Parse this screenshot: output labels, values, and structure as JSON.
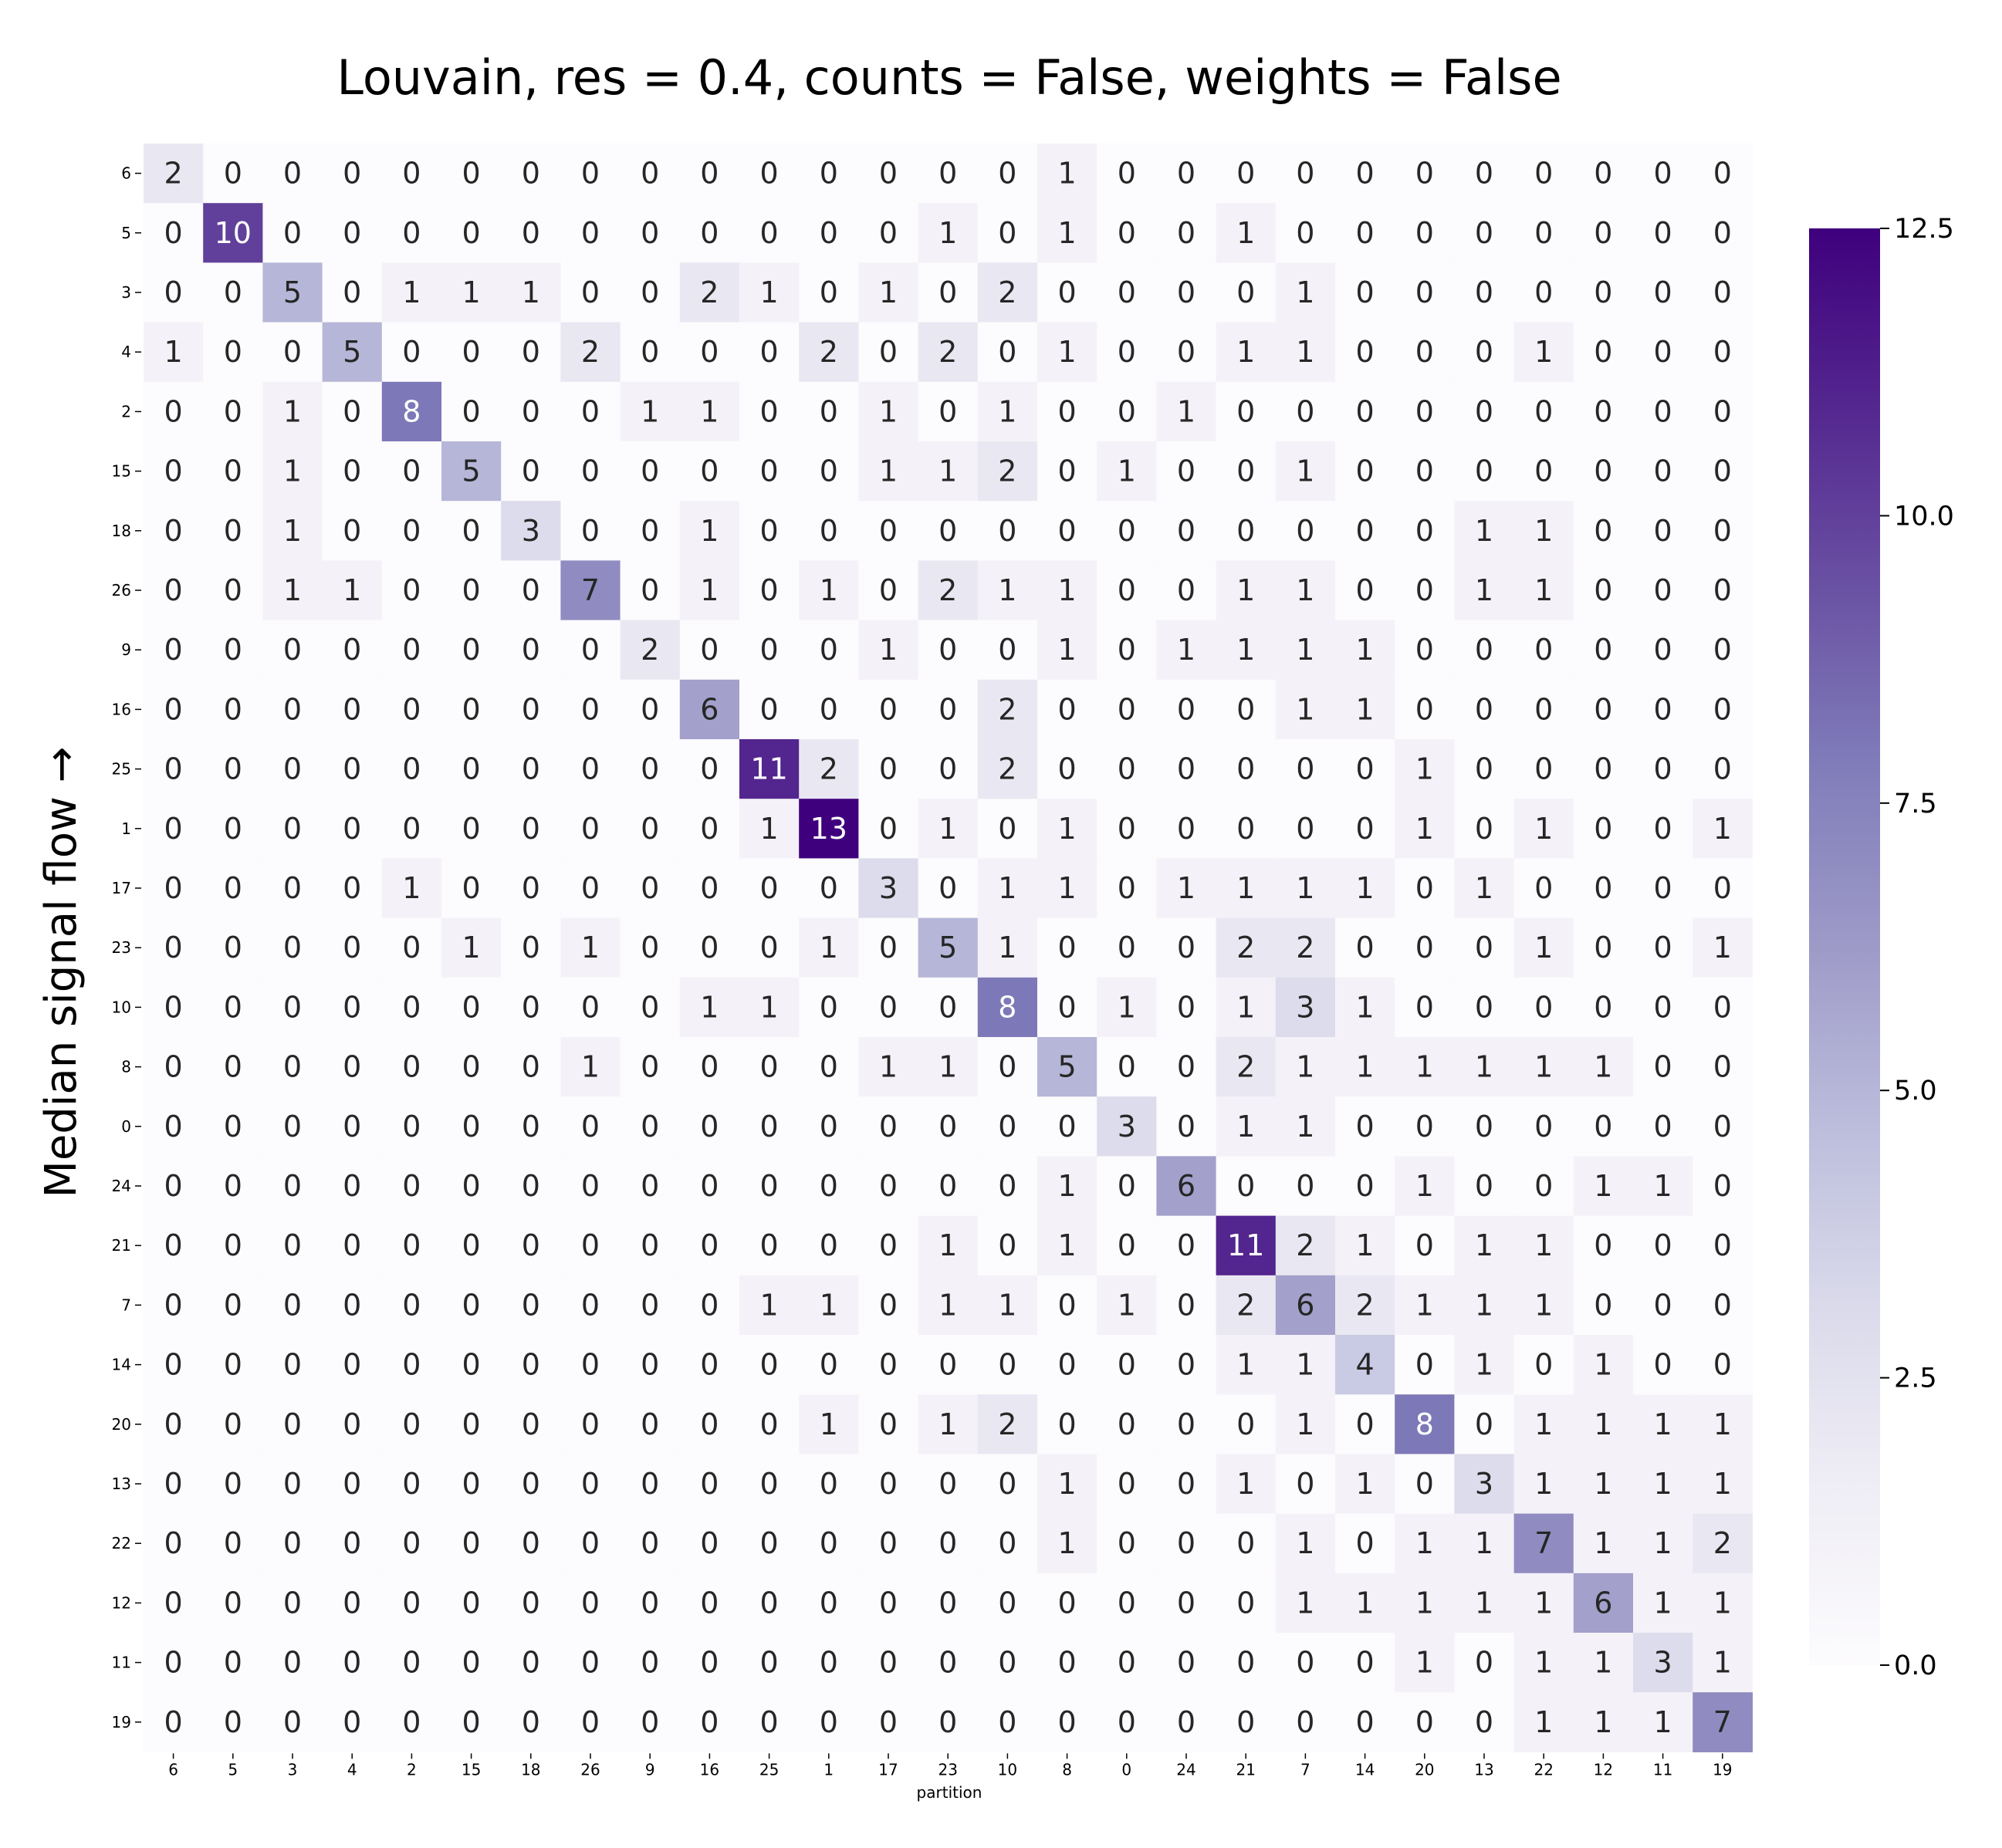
{
  "chart_data": {
    "type": "heatmap",
    "title": "Louvain, res = 0.4, counts = False, weights = False",
    "xlabel": "partition",
    "ylabel": "Median signal flow →",
    "x_categories": [
      "6",
      "5",
      "3",
      "4",
      "2",
      "15",
      "18",
      "26",
      "9",
      "16",
      "25",
      "1",
      "17",
      "23",
      "10",
      "8",
      "0",
      "24",
      "21",
      "7",
      "14",
      "20",
      "13",
      "22",
      "12",
      "11",
      "19"
    ],
    "y_categories": [
      "6",
      "5",
      "3",
      "4",
      "2",
      "15",
      "18",
      "26",
      "9",
      "16",
      "25",
      "1",
      "17",
      "23",
      "10",
      "8",
      "0",
      "24",
      "21",
      "7",
      "14",
      "20",
      "13",
      "22",
      "12",
      "11",
      "19"
    ],
    "values": [
      [
        2,
        0,
        0,
        0,
        0,
        0,
        0,
        0,
        0,
        0,
        0,
        0,
        0,
        0,
        0,
        1,
        0,
        0,
        0,
        0,
        0,
        0,
        0,
        0,
        0,
        0,
        0
      ],
      [
        0,
        10,
        0,
        0,
        0,
        0,
        0,
        0,
        0,
        0,
        0,
        0,
        0,
        1,
        0,
        1,
        0,
        0,
        1,
        0,
        0,
        0,
        0,
        0,
        0,
        0,
        0
      ],
      [
        0,
        0,
        5,
        0,
        1,
        1,
        1,
        0,
        0,
        2,
        1,
        0,
        1,
        0,
        2,
        0,
        0,
        0,
        0,
        1,
        0,
        0,
        0,
        0,
        0,
        0,
        0
      ],
      [
        1,
        0,
        0,
        5,
        0,
        0,
        0,
        2,
        0,
        0,
        0,
        2,
        0,
        2,
        0,
        1,
        0,
        0,
        1,
        1,
        0,
        0,
        0,
        1,
        0,
        0,
        0
      ],
      [
        0,
        0,
        1,
        0,
        8,
        0,
        0,
        0,
        1,
        1,
        0,
        0,
        1,
        0,
        1,
        0,
        0,
        1,
        0,
        0,
        0,
        0,
        0,
        0,
        0,
        0,
        0
      ],
      [
        0,
        0,
        1,
        0,
        0,
        5,
        0,
        0,
        0,
        0,
        0,
        0,
        1,
        1,
        2,
        0,
        1,
        0,
        0,
        1,
        0,
        0,
        0,
        0,
        0,
        0,
        0
      ],
      [
        0,
        0,
        1,
        0,
        0,
        0,
        3,
        0,
        0,
        1,
        0,
        0,
        0,
        0,
        0,
        0,
        0,
        0,
        0,
        0,
        0,
        0,
        1,
        1,
        0,
        0,
        0
      ],
      [
        0,
        0,
        1,
        1,
        0,
        0,
        0,
        7,
        0,
        1,
        0,
        1,
        0,
        2,
        1,
        1,
        0,
        0,
        1,
        1,
        0,
        0,
        1,
        1,
        0,
        0,
        0
      ],
      [
        0,
        0,
        0,
        0,
        0,
        0,
        0,
        0,
        2,
        0,
        0,
        0,
        1,
        0,
        0,
        1,
        0,
        1,
        1,
        1,
        1,
        0,
        0,
        0,
        0,
        0,
        0
      ],
      [
        0,
        0,
        0,
        0,
        0,
        0,
        0,
        0,
        0,
        6,
        0,
        0,
        0,
        0,
        2,
        0,
        0,
        0,
        0,
        1,
        1,
        0,
        0,
        0,
        0,
        0,
        0
      ],
      [
        0,
        0,
        0,
        0,
        0,
        0,
        0,
        0,
        0,
        0,
        11,
        2,
        0,
        0,
        2,
        0,
        0,
        0,
        0,
        0,
        0,
        1,
        0,
        0,
        0,
        0,
        0
      ],
      [
        0,
        0,
        0,
        0,
        0,
        0,
        0,
        0,
        0,
        0,
        1,
        13,
        0,
        1,
        0,
        1,
        0,
        0,
        0,
        0,
        0,
        1,
        0,
        1,
        0,
        0,
        1
      ],
      [
        0,
        0,
        0,
        0,
        1,
        0,
        0,
        0,
        0,
        0,
        0,
        0,
        3,
        0,
        1,
        1,
        0,
        1,
        1,
        1,
        1,
        0,
        1,
        0,
        0,
        0,
        0
      ],
      [
        0,
        0,
        0,
        0,
        0,
        1,
        0,
        1,
        0,
        0,
        0,
        1,
        0,
        5,
        1,
        0,
        0,
        0,
        2,
        2,
        0,
        0,
        0,
        1,
        0,
        0,
        1
      ],
      [
        0,
        0,
        0,
        0,
        0,
        0,
        0,
        0,
        0,
        1,
        1,
        0,
        0,
        0,
        8,
        0,
        1,
        0,
        1,
        3,
        1,
        0,
        0,
        0,
        0,
        0,
        0
      ],
      [
        0,
        0,
        0,
        0,
        0,
        0,
        0,
        1,
        0,
        0,
        0,
        0,
        1,
        1,
        0,
        5,
        0,
        0,
        2,
        1,
        1,
        1,
        1,
        1,
        1,
        0,
        0
      ],
      [
        0,
        0,
        0,
        0,
        0,
        0,
        0,
        0,
        0,
        0,
        0,
        0,
        0,
        0,
        0,
        0,
        3,
        0,
        1,
        1,
        0,
        0,
        0,
        0,
        0,
        0,
        0
      ],
      [
        0,
        0,
        0,
        0,
        0,
        0,
        0,
        0,
        0,
        0,
        0,
        0,
        0,
        0,
        0,
        1,
        0,
        6,
        0,
        0,
        0,
        1,
        0,
        0,
        1,
        1,
        0
      ],
      [
        0,
        0,
        0,
        0,
        0,
        0,
        0,
        0,
        0,
        0,
        0,
        0,
        0,
        1,
        0,
        1,
        0,
        0,
        11,
        2,
        1,
        0,
        1,
        1,
        0,
        0,
        0
      ],
      [
        0,
        0,
        0,
        0,
        0,
        0,
        0,
        0,
        0,
        0,
        1,
        1,
        0,
        1,
        1,
        0,
        1,
        0,
        2,
        6,
        2,
        1,
        1,
        1,
        0,
        0,
        0
      ],
      [
        0,
        0,
        0,
        0,
        0,
        0,
        0,
        0,
        0,
        0,
        0,
        0,
        0,
        0,
        0,
        0,
        0,
        0,
        1,
        1,
        4,
        0,
        1,
        0,
        1,
        0,
        0
      ],
      [
        0,
        0,
        0,
        0,
        0,
        0,
        0,
        0,
        0,
        0,
        0,
        1,
        0,
        1,
        2,
        0,
        0,
        0,
        0,
        1,
        0,
        8,
        0,
        1,
        1,
        1,
        1
      ],
      [
        0,
        0,
        0,
        0,
        0,
        0,
        0,
        0,
        0,
        0,
        0,
        0,
        0,
        0,
        0,
        1,
        0,
        0,
        1,
        0,
        1,
        0,
        3,
        1,
        1,
        1,
        1
      ],
      [
        0,
        0,
        0,
        0,
        0,
        0,
        0,
        0,
        0,
        0,
        0,
        0,
        0,
        0,
        0,
        1,
        0,
        0,
        0,
        1,
        0,
        1,
        1,
        7,
        1,
        1,
        2
      ],
      [
        0,
        0,
        0,
        0,
        0,
        0,
        0,
        0,
        0,
        0,
        0,
        0,
        0,
        0,
        0,
        0,
        0,
        0,
        0,
        1,
        1,
        1,
        1,
        1,
        6,
        1,
        1
      ],
      [
        0,
        0,
        0,
        0,
        0,
        0,
        0,
        0,
        0,
        0,
        0,
        0,
        0,
        0,
        0,
        0,
        0,
        0,
        0,
        0,
        0,
        1,
        0,
        1,
        1,
        3,
        1
      ],
      [
        0,
        0,
        0,
        0,
        0,
        0,
        0,
        0,
        0,
        0,
        0,
        0,
        0,
        0,
        0,
        0,
        0,
        0,
        0,
        0,
        0,
        0,
        0,
        1,
        1,
        1,
        7
      ]
    ],
    "colorbar": {
      "min": 0.0,
      "max": 12.5,
      "ticks": [
        "0.0",
        "2.5",
        "5.0",
        "7.5",
        "10.0",
        "12.5"
      ],
      "tick_values": [
        0,
        2.5,
        5,
        7.5,
        10,
        12.5
      ]
    },
    "colormap": "Purples",
    "colors": {
      "low": "#fcfbfd",
      "mid": "#bcbddc",
      "high": "#3f007d",
      "text_dark": "#262626",
      "text_light": "#ffffff"
    },
    "annotated": true
  }
}
